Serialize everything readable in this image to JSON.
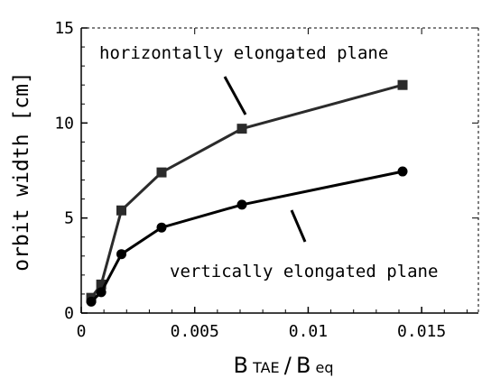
{
  "chart_data": {
    "type": "line",
    "xlabel": {
      "main1": "B",
      "sub1": "TAE",
      "sep": "/",
      "main2": "B",
      "sub2": "eq"
    },
    "ylabel": "orbit width [cm]",
    "xlim": [
      0,
      0.0175
    ],
    "ylim": [
      0,
      15
    ],
    "xticks": [
      0,
      0.005,
      0.01,
      0.015
    ],
    "xtick_labels": [
      "0",
      "0.005",
      "0.01",
      "0.015"
    ],
    "yticks": [
      0,
      5,
      10,
      15
    ],
    "ytick_labels": [
      "0",
      "5",
      "10",
      "15"
    ],
    "grid": false,
    "series": [
      {
        "name": "horizontally elongated plane",
        "marker": "square",
        "color": "#2b2b2b",
        "x": [
          0.00044,
          0.00088,
          0.00177,
          0.00354,
          0.00708,
          0.01416
        ],
        "y": [
          0.8,
          1.5,
          5.4,
          7.4,
          9.7,
          12.0
        ]
      },
      {
        "name": "vertically elongated plane",
        "marker": "circle",
        "color": "#000000",
        "x": [
          0.00044,
          0.00088,
          0.00177,
          0.00354,
          0.00708,
          0.01416
        ],
        "y": [
          0.6,
          1.1,
          3.1,
          4.5,
          5.7,
          7.45
        ]
      }
    ]
  }
}
